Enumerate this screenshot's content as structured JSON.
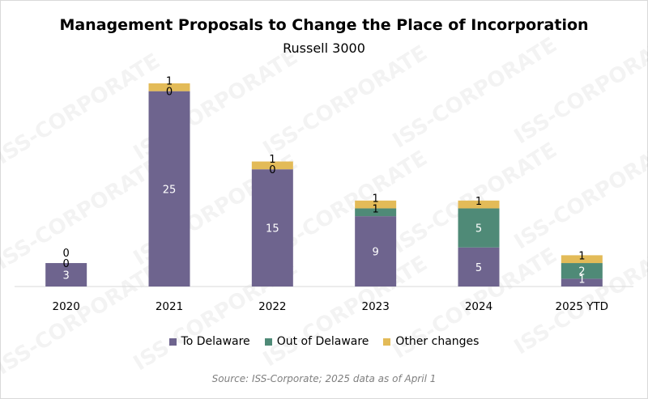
{
  "title": "Management Proposals to Change the Place of Incorporation",
  "subtitle": "Russell 3000",
  "source": "Source: ISS-Corporate; 2025 data as of April 1",
  "watermark": "ISS-CORPORATE",
  "chart_data": {
    "type": "bar",
    "stacked": true,
    "categories": [
      "2020",
      "2021",
      "2022",
      "2023",
      "2024",
      "2025 YTD"
    ],
    "series": [
      {
        "name": "To Delaware",
        "color": "#6e648e",
        "values": [
          3,
          25,
          15,
          9,
          5,
          1
        ],
        "label_color": "#ffffff"
      },
      {
        "name": "Out of Delaware",
        "color": "#4f8a77",
        "values": [
          0,
          0,
          0,
          1,
          5,
          2
        ],
        "label_color": "#ffffff"
      },
      {
        "name": "Other changes",
        "color": "#e3bb58",
        "values": [
          0,
          1,
          1,
          1,
          1,
          1
        ],
        "label_color": "#000000"
      }
    ],
    "ylim": [
      0,
      26
    ],
    "grid": false,
    "legend": "bottom"
  }
}
